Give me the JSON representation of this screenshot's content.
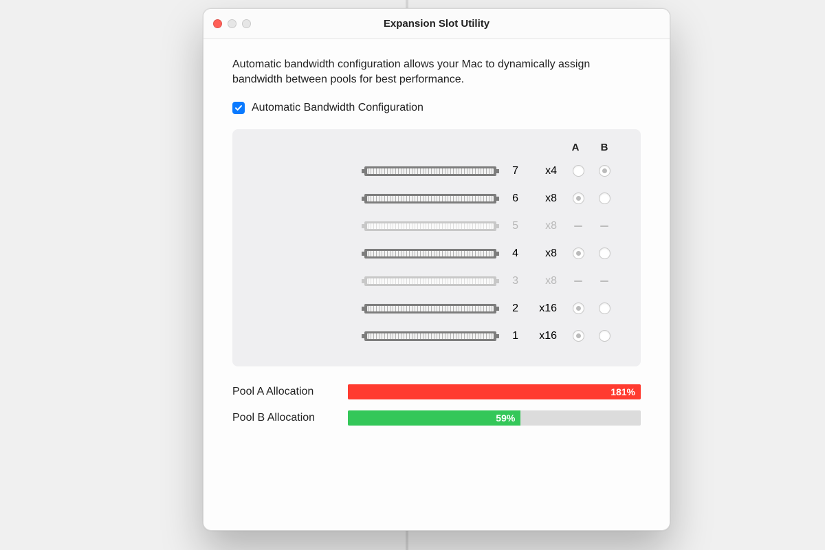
{
  "colors": {
    "traffic_close": "#ff5f57",
    "traffic_inactive": "#e6e6e6",
    "checkbox_bg": "#0a7aff",
    "panel_bg": "#efeff1",
    "slot_dark": "#7d7d7d",
    "slot_light": "#c8c8c8",
    "bar_track": "#dcdcdc",
    "pool_a_fill": "#ff3b30",
    "pool_b_fill": "#34c759"
  },
  "window": {
    "title": "Expansion Slot Utility"
  },
  "description": "Automatic bandwidth configuration allows your Mac to dynamically assign bandwidth between pools for best performance.",
  "checkbox": {
    "checked": true,
    "label": "Automatic Bandwidth Configuration"
  },
  "headers": {
    "col_a": "A",
    "col_b": "B"
  },
  "slots": [
    {
      "num": "7",
      "bw": "x4",
      "enabled": true,
      "a": "unselected",
      "b": "selected"
    },
    {
      "num": "6",
      "bw": "x8",
      "enabled": true,
      "a": "selected",
      "b": "unselected"
    },
    {
      "num": "5",
      "bw": "x8",
      "enabled": false,
      "a": "dash",
      "b": "dash"
    },
    {
      "num": "4",
      "bw": "x8",
      "enabled": true,
      "a": "selected",
      "b": "unselected"
    },
    {
      "num": "3",
      "bw": "x8",
      "enabled": false,
      "a": "dash",
      "b": "dash"
    },
    {
      "num": "2",
      "bw": "x16",
      "enabled": true,
      "a": "selected",
      "b": "unselected"
    },
    {
      "num": "1",
      "bw": "x16",
      "enabled": true,
      "a": "selected",
      "b": "unselected"
    }
  ],
  "pools": {
    "a": {
      "label": "Pool A Allocation",
      "percent": 181,
      "display_width_pct": 100,
      "text": "181%"
    },
    "b": {
      "label": "Pool B Allocation",
      "percent": 59,
      "display_width_pct": 59,
      "text": "59%"
    }
  }
}
